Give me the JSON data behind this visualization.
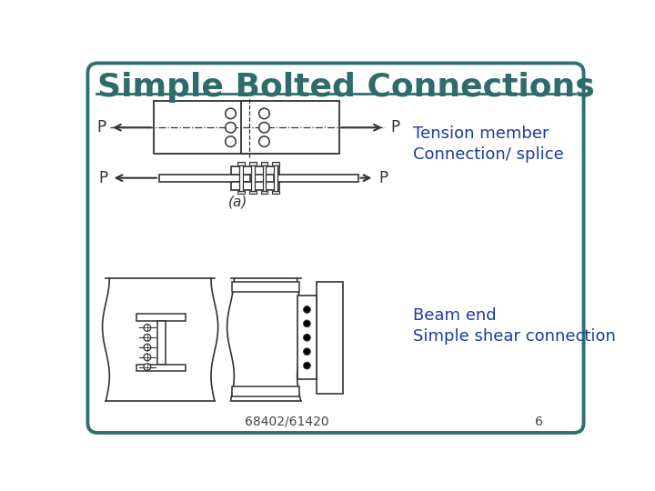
{
  "title": "Simple Bolted Connections",
  "title_color": "#2e6b6b",
  "title_fontsize": 26,
  "bg_color": "#ffffff",
  "border_color": "#2e7070",
  "line_color": "#333333",
  "text_color": "#1a3c9e",
  "footer_text": "68402/61420",
  "footer_page": "6",
  "tension_label": "Tension member",
  "splice_label": "Connection/ splice",
  "beam_end_label": "Beam end",
  "shear_label": "Simple shear connection",
  "fig_label_a": "(a)"
}
